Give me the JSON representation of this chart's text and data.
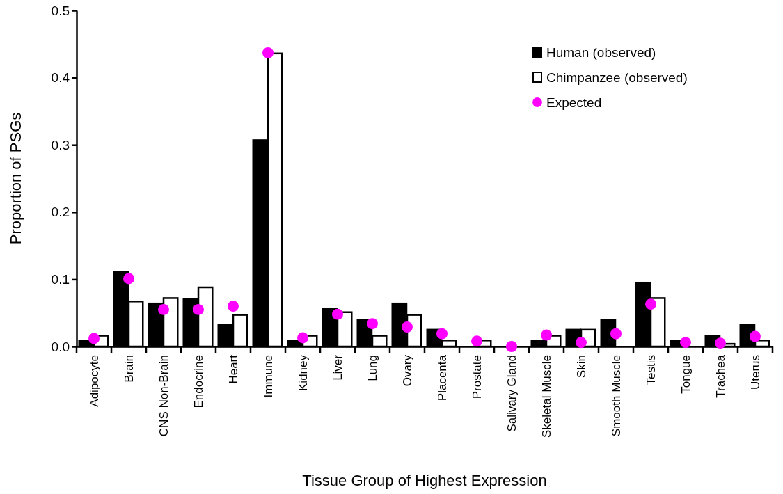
{
  "chart_data": {
    "type": "bar",
    "xlabel": "Tissue Group of Highest Expression",
    "ylabel": "Proportion of PSGs",
    "categories": [
      "Adipocyte",
      "Brain",
      "CNS Non-Brain",
      "Endocrine",
      "Heart",
      "Immune",
      "Kidney",
      "Liver",
      "Lung",
      "Ovary",
      "Placenta",
      "Prostate",
      "Salivary Gland",
      "Skeletal Muscle",
      "Skin",
      "Smooth Muscle",
      "Testis",
      "Tongue",
      "Trachea",
      "Uterus"
    ],
    "series": [
      {
        "name": "Human (observed)",
        "color": "#000000",
        "values": [
          0.009,
          0.111,
          0.064,
          0.071,
          0.032,
          0.307,
          0.009,
          0.056,
          0.04,
          0.064,
          0.025,
          0,
          0,
          0.009,
          0.025,
          0.04,
          0.095,
          0.009,
          0.016,
          0.032
        ]
      },
      {
        "name": "Chimpanzee (observed)",
        "color": "#ffffff",
        "values": [
          0.016,
          0.067,
          0.072,
          0.088,
          0.047,
          0.436,
          0.016,
          0.051,
          0.016,
          0.047,
          0.009,
          0.009,
          0,
          0.016,
          0.025,
          0,
          0.072,
          0,
          0.004,
          0.009
        ]
      },
      {
        "name": "Expected",
        "type": "scatter",
        "color": "#ff00ff",
        "x": [
          "Adipocyte",
          "Brain",
          "CNS Non-Brain",
          "Endocrine",
          "Heart",
          "Immune",
          "Kidney",
          "Liver",
          "Lung",
          "Ovary",
          "Placenta",
          "Prostate",
          "Salivary Gland",
          "Skeletal Muscle",
          "Skin",
          "Smooth Muscle",
          "Testis",
          "Tongue",
          "Trachea",
          "Uterus"
        ],
        "values": [
          0.012,
          0.101,
          0.055,
          0.055,
          0.06,
          0.437,
          0.013,
          0.048,
          0.034,
          0.029,
          0.019,
          0.008,
          0,
          0.017,
          0.006,
          0.019,
          0.063,
          0.006,
          0.005,
          0.015
        ]
      }
    ],
    "ylim": [
      0,
      0.5
    ],
    "yticks": [
      {
        "value": 0,
        "label": "0.0"
      },
      {
        "value": 0.1,
        "label": "0.1"
      },
      {
        "value": 0.2,
        "label": "0.2"
      },
      {
        "value": 0.3,
        "label": "0.3"
      },
      {
        "value": 0.4,
        "label": "0.4"
      },
      {
        "value": 0.5,
        "label": "0.5"
      }
    ],
    "grid": false,
    "legend": "top right",
    "marker": "circle"
  }
}
